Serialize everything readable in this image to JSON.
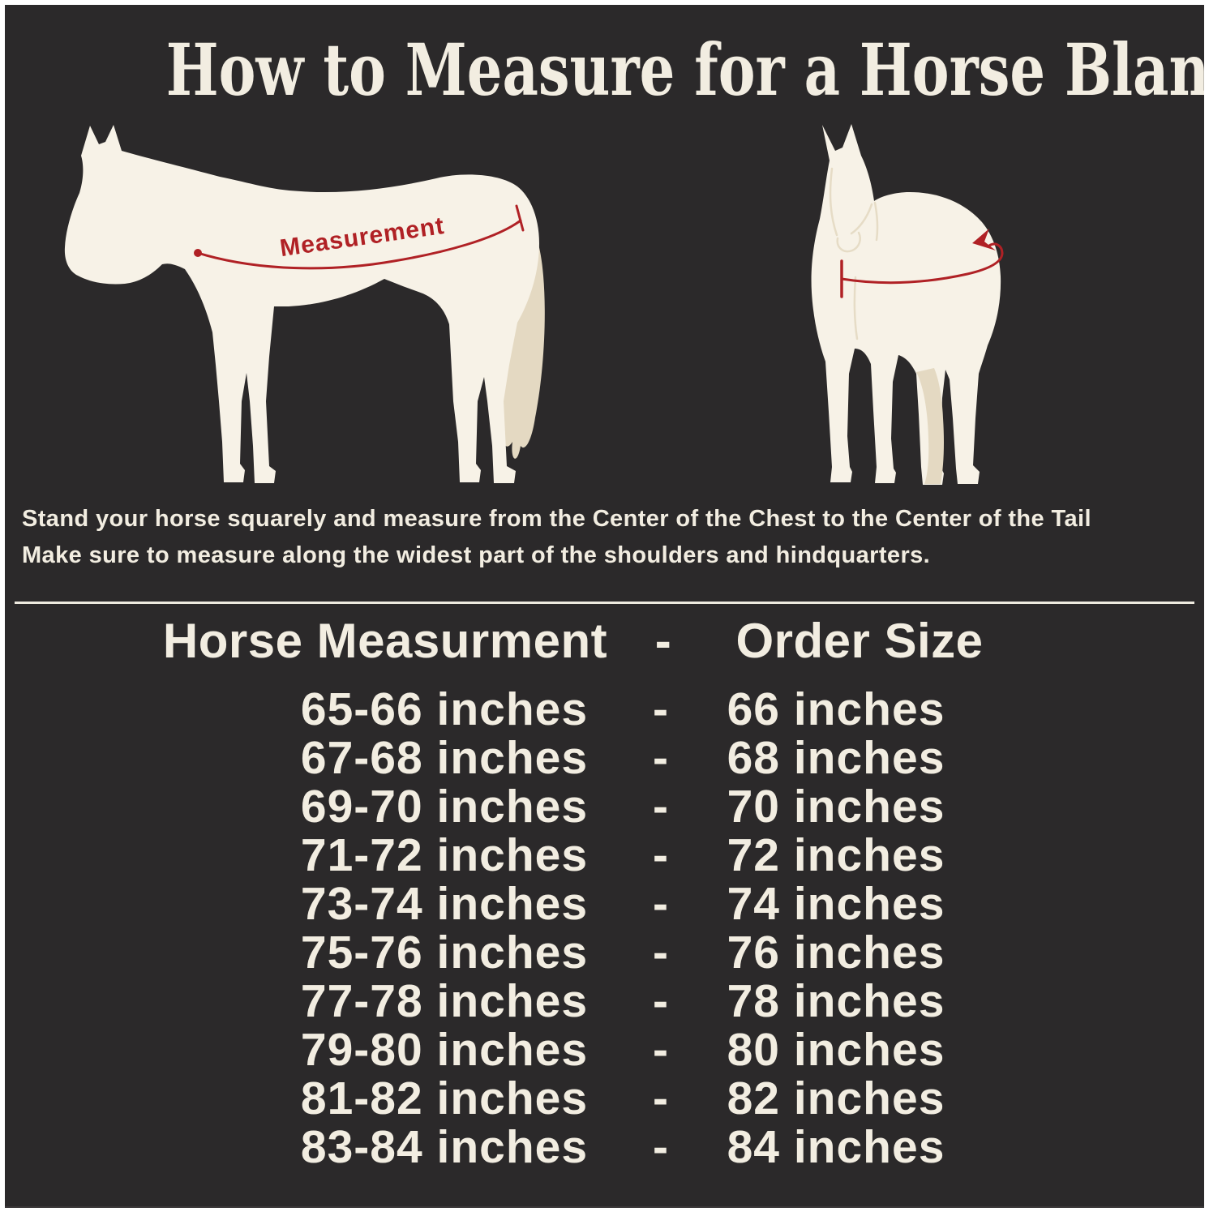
{
  "page": {
    "title": "How to Measure for a Horse Blanket",
    "measurement_label": "Measurement",
    "instructions_line1": "Stand your horse squarely and measure from the Center of the Chest to the Center of the Tail",
    "instructions_line2": "Make sure to measure along the widest part of the shoulders and hindquarters."
  },
  "colors": {
    "background": "#2b292a",
    "frame": "#ffffff",
    "text_cream": "#f2ede1",
    "horse_body": "#f7f2e7",
    "horse_shade": "#e4d9c2",
    "accent_red": "#b02125",
    "divider": "#efebe0"
  },
  "size_table": {
    "header": {
      "col1": "Horse Measurment",
      "separator": "-",
      "col2": "Order Size"
    },
    "rows": [
      {
        "measurement": "65-66 inches",
        "separator": "-",
        "order_size": "66 inches"
      },
      {
        "measurement": "67-68 inches",
        "separator": "-",
        "order_size": "68 inches"
      },
      {
        "measurement": "69-70 inches",
        "separator": "-",
        "order_size": "70 inches"
      },
      {
        "measurement": "71-72 inches",
        "separator": "-",
        "order_size": "72 inches"
      },
      {
        "measurement": "73-74 inches",
        "separator": "-",
        "order_size": "74 inches"
      },
      {
        "measurement": "75-76 inches",
        "separator": "-",
        "order_size": "76 inches"
      },
      {
        "measurement": "77-78 inches",
        "separator": "-",
        "order_size": "78 inches"
      },
      {
        "measurement": "79-80 inches",
        "separator": "-",
        "order_size": "80 inches"
      },
      {
        "measurement": "81-82 inches",
        "separator": "-",
        "order_size": "82 inches"
      },
      {
        "measurement": "83-84 inches",
        "separator": "-",
        "order_size": "84 inches"
      }
    ]
  }
}
